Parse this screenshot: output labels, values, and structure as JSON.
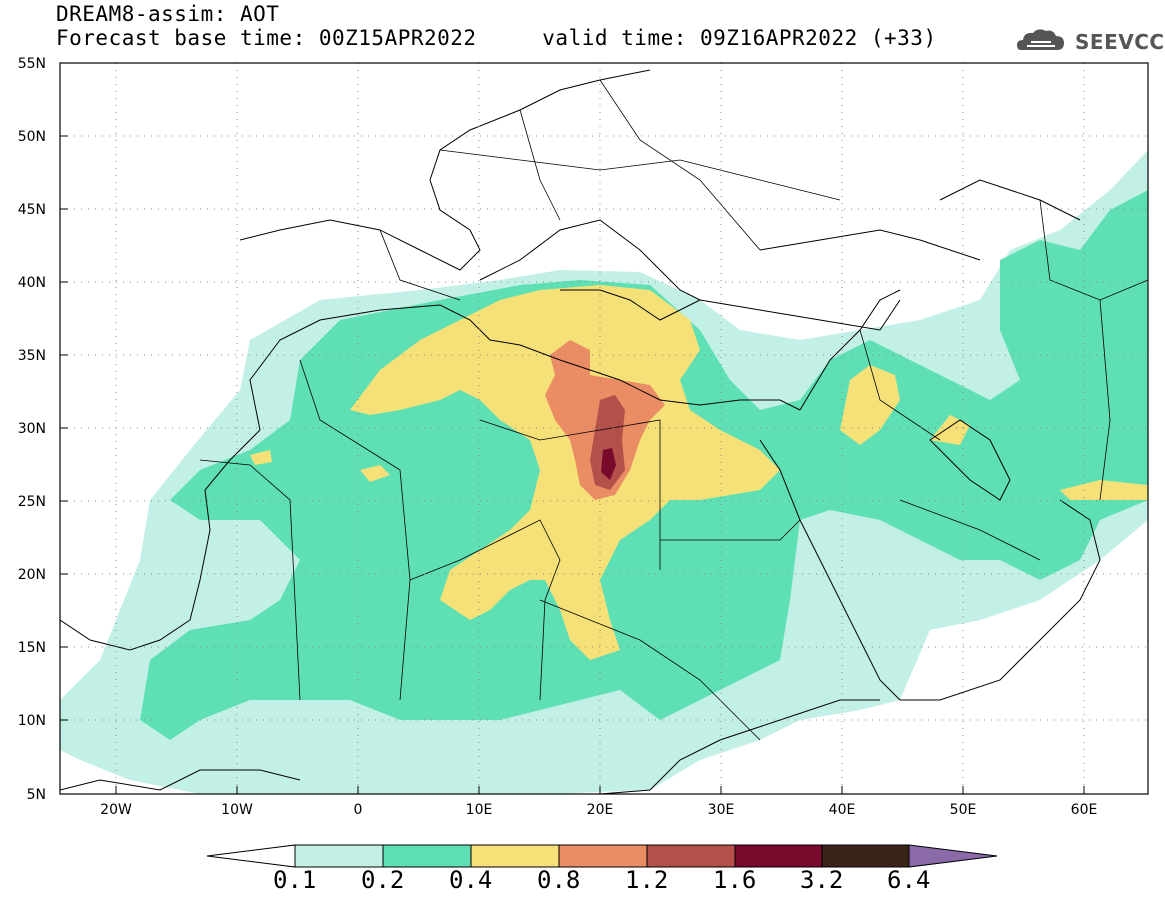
{
  "header": {
    "title_line1": "DREAM8-assim: AOT",
    "title_line2": "Forecast base time: 00Z15APR2022     valid time: 09Z16APR2022 (+33)",
    "logo_text": "SEEVCCC"
  },
  "map": {
    "lat_labels": [
      "55N",
      "50N",
      "45N",
      "40N",
      "35N",
      "30N",
      "25N",
      "20N",
      "15N",
      "10N",
      "5N"
    ],
    "lon_labels": [
      "20W",
      "10W",
      "0",
      "10E",
      "20E",
      "30E",
      "40E",
      "50E",
      "60E"
    ]
  },
  "colorbar": {
    "labels": [
      "0.1",
      "0.2",
      "0.4",
      "0.8",
      "1.2",
      "1.6",
      "3.2",
      "6.4"
    ],
    "colors": [
      "#ffffff",
      "#c3f0e6",
      "#5ee0b4",
      "#f6e179",
      "#ea8d65",
      "#b3504a",
      "#7a0a2c",
      "#3a2418",
      "#8a6aa8"
    ]
  }
}
